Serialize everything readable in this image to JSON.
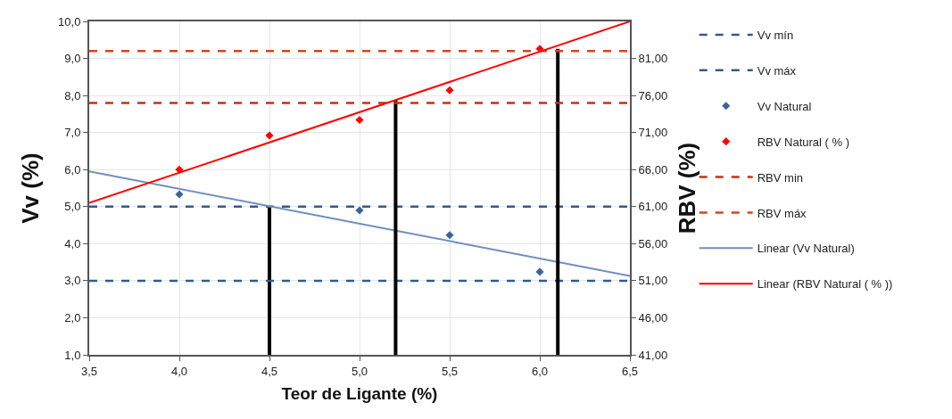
{
  "chart_data": {
    "type": "line",
    "xlabel": "Teor de Ligante (%)",
    "ylabel": "Vv (%)",
    "y2label": "RBV (%)",
    "xlim": [
      3.5,
      6.5
    ],
    "xticks": [
      {
        "value": 3.5,
        "label": "3,5"
      },
      {
        "value": 4.0,
        "label": "4,0"
      },
      {
        "value": 4.5,
        "label": "4,5"
      },
      {
        "value": 5.0,
        "label": "5,0"
      },
      {
        "value": 5.5,
        "label": "5,5"
      },
      {
        "value": 6.0,
        "label": "6,0"
      },
      {
        "value": 6.5,
        "label": "6,5"
      }
    ],
    "ylim": [
      1,
      10
    ],
    "yticks": [
      {
        "value": 1,
        "label": "1,0"
      },
      {
        "value": 2,
        "label": "2,0"
      },
      {
        "value": 3,
        "label": "3,0"
      },
      {
        "value": 4,
        "label": "4,0"
      },
      {
        "value": 5,
        "label": "5,0"
      },
      {
        "value": 6,
        "label": "6,0"
      },
      {
        "value": 7,
        "label": "7,0"
      },
      {
        "value": 8,
        "label": "8,0"
      },
      {
        "value": 9,
        "label": "9,0"
      },
      {
        "value": 10,
        "label": "10,0"
      }
    ],
    "y2lim": [
      41,
      86
    ],
    "y2ticks": [
      {
        "value": 41,
        "label": "41,00"
      },
      {
        "value": 46,
        "label": "46,00"
      },
      {
        "value": 51,
        "label": "51,00"
      },
      {
        "value": 56,
        "label": "56,00"
      },
      {
        "value": 61,
        "label": "61,00"
      },
      {
        "value": 66,
        "label": "66,00"
      },
      {
        "value": 71,
        "label": "71,00"
      },
      {
        "value": 76,
        "label": "76,00"
      },
      {
        "value": 81,
        "label": "81,00"
      }
    ],
    "grid": true,
    "legend": "right",
    "series": [
      {
        "name": "Vv mín",
        "line_style": "dashed",
        "color": "#2f5b94",
        "x": [
          3.5,
          6.5
        ],
        "values": [
          3,
          3
        ]
      },
      {
        "name": "Vv máx",
        "line_style": "dashed",
        "color": "#2f5b94",
        "x": [
          3.5,
          6.5
        ],
        "values": [
          5,
          5
        ]
      },
      {
        "name": "Vv Natural",
        "type": "scatter",
        "marker": "diamond",
        "color": "#3a649e",
        "x": [
          4.0,
          5.0,
          5.5,
          6.0
        ],
        "values": [
          5.33,
          4.9,
          4.23,
          3.24
        ]
      },
      {
        "name": "RBV Natural ( % )",
        "type": "scatter",
        "marker": "diamond",
        "axis": "y2",
        "color": "#ff0000",
        "x": [
          4.0,
          4.5,
          5.0,
          5.5,
          6.0
        ],
        "values": [
          66.0,
          70.6,
          72.7,
          76.7,
          82.3
        ]
      },
      {
        "name": "RBV min",
        "line_style": "dashed",
        "axis": "y2",
        "color": "#c8320f",
        "x": [
          3.5,
          6.5
        ],
        "values": [
          75,
          75
        ]
      },
      {
        "name": "RBV máx",
        "line_style": "dashed",
        "axis": "y2",
        "color": "#d9441a",
        "x": [
          3.5,
          6.5
        ],
        "values": [
          82,
          82
        ]
      },
      {
        "name": "Linear (Vv Natural)",
        "line_style": "solid",
        "color": "#6f8fc0",
        "x": [
          3.5,
          6.5
        ],
        "values": [
          5.95,
          3.13
        ]
      },
      {
        "name": "Linear (RBV Natural ( % ))",
        "line_style": "solid",
        "axis": "y2",
        "color": "#ff0000",
        "x": [
          3.5,
          6.5
        ],
        "values": [
          61.5,
          86
        ]
      },
      {
        "line_style": "solid",
        "color": "#000000",
        "x": [
          4.5,
          4.5
        ],
        "values": [
          1,
          5
        ]
      },
      {
        "line_style": "solid",
        "axis": "y2",
        "color": "#000000",
        "x": [
          5.2,
          5.2
        ],
        "values": [
          41,
          75.4
        ]
      },
      {
        "line_style": "solid",
        "axis": "y2",
        "color": "#000000",
        "x": [
          6.1,
          6.1
        ],
        "values": [
          41,
          82.3
        ]
      }
    ]
  }
}
